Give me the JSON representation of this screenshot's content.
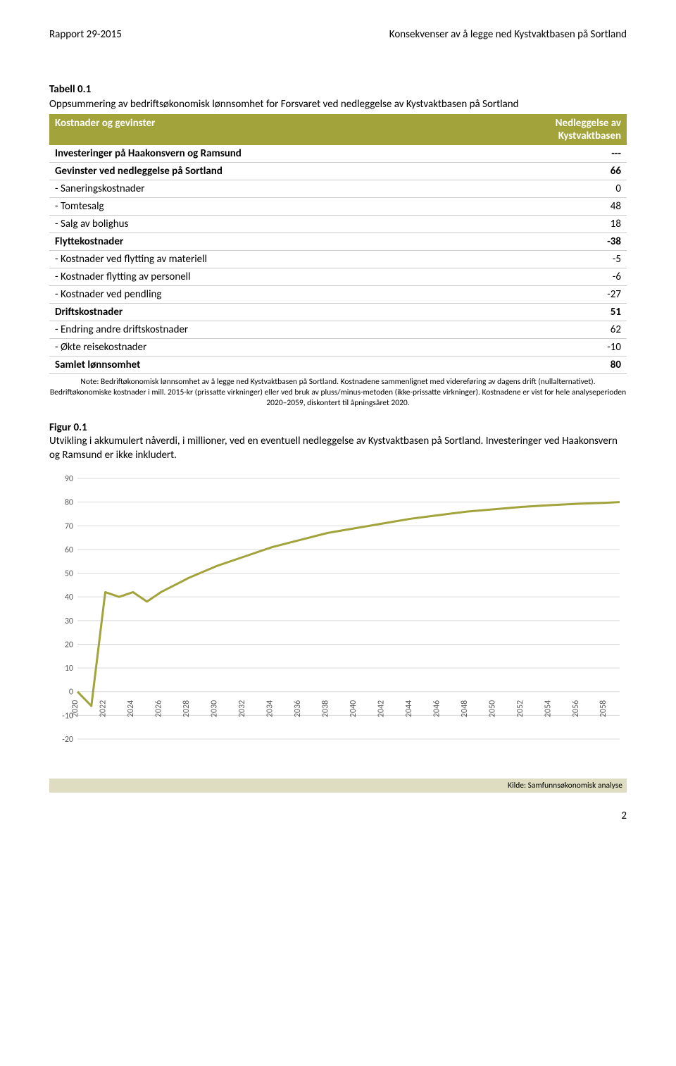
{
  "header": {
    "left": "Rapport 29-2015",
    "right": "Konsekvenser av å legge ned Kystvaktbasen på Sortland"
  },
  "table": {
    "caption_label": "Tabell 0.1",
    "caption_text": "Oppsummering av bedriftsøkonomisk lønnsomhet for Forsvaret ved nedleggelse av Kystvaktbasen på Sortland",
    "col_left": "Kostnader og gevinster",
    "col_right_line1": "Nedleggelse av",
    "col_right_line2": "Kystvaktbasen",
    "header_bg": "#a2a33b",
    "header_color": "#ffffff",
    "rows": [
      {
        "label": "Investeringer på Haakonsvern og Ramsund",
        "value": "---",
        "bold": true,
        "indent": false
      },
      {
        "label": "Gevinster ved nedleggelse på Sortland",
        "value": "66",
        "bold": true,
        "indent": false
      },
      {
        "label": "- Saneringskostnader",
        "value": "0",
        "bold": false,
        "indent": true
      },
      {
        "label": "- Tomtesalg",
        "value": "48",
        "bold": false,
        "indent": true
      },
      {
        "label": "- Salg av bolighus",
        "value": "18",
        "bold": false,
        "indent": true
      },
      {
        "label": "Flyttekostnader",
        "value": "-38",
        "bold": true,
        "indent": false
      },
      {
        "label": "- Kostnader ved flytting av materiell",
        "value": "-5",
        "bold": false,
        "indent": true
      },
      {
        "label": "- Kostnader flytting av personell",
        "value": "-6",
        "bold": false,
        "indent": true
      },
      {
        "label": "- Kostnader ved pendling",
        "value": "-27",
        "bold": false,
        "indent": true
      },
      {
        "label": "Driftskostnader",
        "value": "51",
        "bold": true,
        "indent": false
      },
      {
        "label": "- Endring andre driftskostnader",
        "value": "62",
        "bold": false,
        "indent": true
      },
      {
        "label": "- Økte reisekostnader",
        "value": "-10",
        "bold": false,
        "indent": true
      },
      {
        "label": "Samlet lønnsomhet",
        "value": "80",
        "bold": true,
        "indent": false
      }
    ],
    "note": "Note: Bedriftøkonomisk lønnsomhet av å legge ned Kystvaktbasen på Sortland. Kostnadene sammenlignet med videreføring av dagens drift (nullalternativet). Bedriftøkonomiske kostnader i mill. 2015-kr (prissatte virkninger) eller ved bruk av pluss/minus-metoden (ikke-prissatte virkninger). Kostnadene er vist for hele analyseperioden 2020–2059, diskontert til åpningsåret 2020."
  },
  "figure": {
    "caption_label": "Figur 0.1",
    "caption_text": "Utvikling i akkumulert nåverdi, i millioner, ved en eventuell nedleggelse av Kystvaktbasen på Sortland. Investeringer ved Haakonsvern og Ramsund er ikke inkludert."
  },
  "chart": {
    "type": "line",
    "x_years": [
      2020,
      2022,
      2024,
      2026,
      2028,
      2030,
      2032,
      2034,
      2036,
      2038,
      2040,
      2042,
      2044,
      2046,
      2048,
      2050,
      2052,
      2054,
      2056,
      2058
    ],
    "series": [
      {
        "color": "#a2a33b",
        "points": [
          [
            2020,
            0
          ],
          [
            2021,
            -6
          ],
          [
            2022,
            42
          ],
          [
            2023,
            40
          ],
          [
            2024,
            42
          ],
          [
            2025,
            38
          ],
          [
            2026,
            42
          ],
          [
            2028,
            48
          ],
          [
            2030,
            53
          ],
          [
            2032,
            57
          ],
          [
            2034,
            61
          ],
          [
            2036,
            64
          ],
          [
            2038,
            67
          ],
          [
            2040,
            69
          ],
          [
            2042,
            71
          ],
          [
            2044,
            73
          ],
          [
            2046,
            74.5
          ],
          [
            2048,
            76
          ],
          [
            2050,
            77
          ],
          [
            2052,
            78
          ],
          [
            2054,
            78.7
          ],
          [
            2056,
            79.3
          ],
          [
            2058,
            79.7
          ],
          [
            2059,
            80
          ]
        ]
      }
    ],
    "ylim": [
      -20,
      90
    ],
    "ytick_step": 10,
    "xlim": [
      2020,
      2059
    ],
    "background_color": "#ffffff",
    "grid_color": "#d9d9d9",
    "axis_label_color": "#595959",
    "line_width": 3,
    "font_size": 12
  },
  "source": {
    "text": "Kilde: Samfunnsøkonomisk analyse",
    "bg": "#deddc2"
  },
  "page_number": "2"
}
